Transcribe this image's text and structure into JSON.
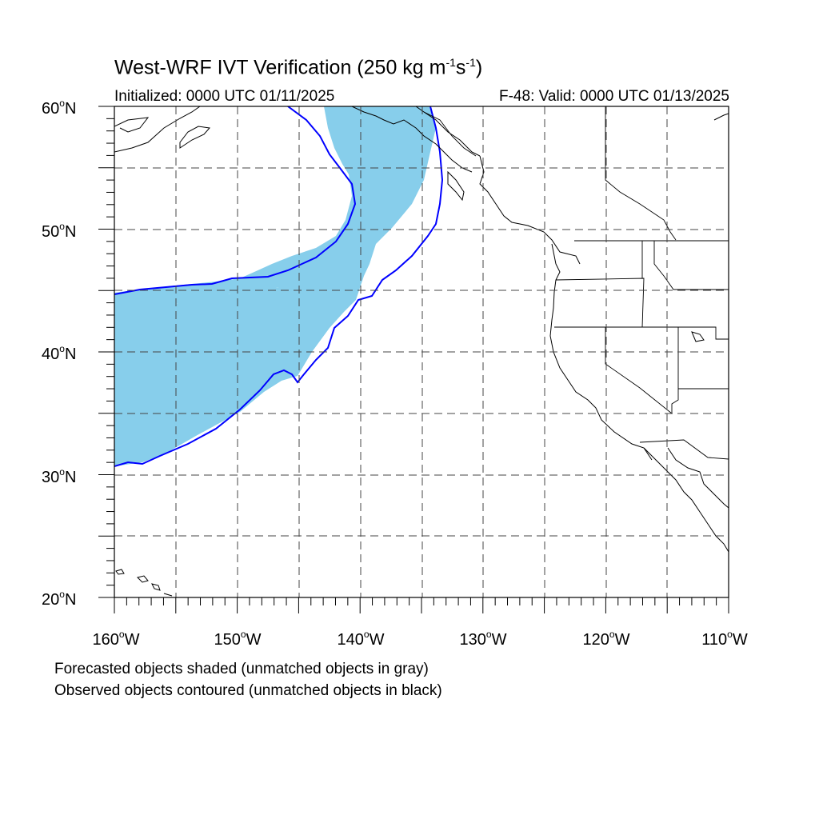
{
  "title": {
    "main": "West-WRF IVT Verification (250 kg m",
    "exp1": "-1",
    "mid": "s",
    "exp2": "-1",
    "end": ")"
  },
  "subtitle_left": "Initialized: 0000 UTC 01/11/2025",
  "subtitle_right": "F-48: Valid: 0000 UTC 01/13/2025",
  "lat_labels": [
    "60",
    "50",
    "40",
    "30",
    "20"
  ],
  "lat_suffix": "N",
  "lon_labels": [
    "160",
    "150",
    "140",
    "130",
    "120",
    "110"
  ],
  "lon_suffix": "W",
  "deg_symbol": "o",
  "footnotes": [
    "Forecasted objects shaded (unmatched objects in gray)",
    "Observed objects contoured (unmatched objects in black)"
  ],
  "colors": {
    "forecast_matched": "#87ceeb",
    "observed_matched": "#0000ff",
    "coastline": "#000000",
    "grid": "#444444"
  },
  "map_extent": {
    "lon": [
      -160,
      -110
    ],
    "lat": [
      20,
      60
    ]
  }
}
